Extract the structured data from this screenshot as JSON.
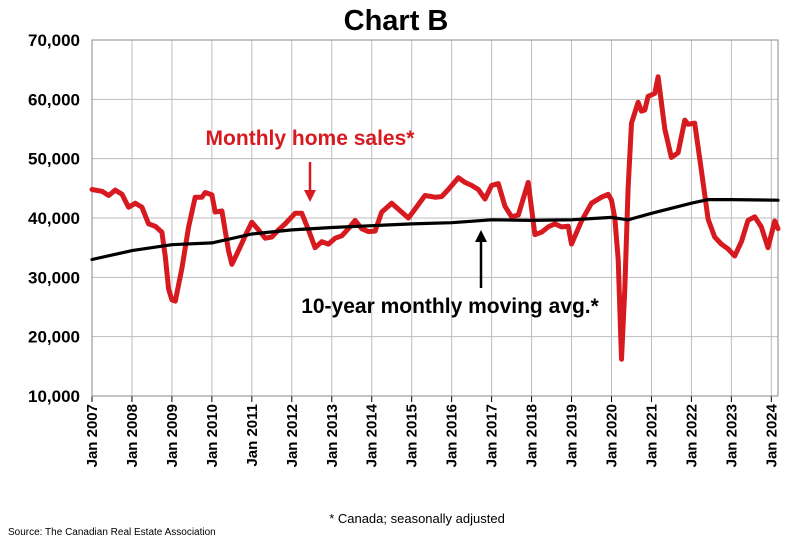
{
  "chart_data": {
    "type": "line",
    "title": "Chart B",
    "xlabel": "",
    "ylabel": "",
    "ylim": [
      10000,
      70000
    ],
    "xlim": [
      "Jan 2007",
      "Mar 2024"
    ],
    "grid": true,
    "yticks": [
      "10,000",
      "20,000",
      "30,000",
      "40,000",
      "50,000",
      "60,000",
      "70,000"
    ],
    "xticks": [
      "Jan 2007",
      "Jan 2008",
      "Jan 2009",
      "Jan 2010",
      "Jan 2011",
      "Jan 2012",
      "Jan 2013",
      "Jan 2014",
      "Jan 2015",
      "Jan 2016",
      "Jan 2017",
      "Jan 2018",
      "Jan 2019",
      "Jan 2020",
      "Jan 2021",
      "Jan 2022",
      "Jan 2023",
      "Jan 2024"
    ],
    "series": [
      {
        "name": "Monthly home sales*",
        "color": "#d71920",
        "points": [
          [
            "2007-01",
            44800
          ],
          [
            "2007-04",
            44500
          ],
          [
            "2007-06",
            43800
          ],
          [
            "2007-08",
            44700
          ],
          [
            "2007-10",
            44000
          ],
          [
            "2007-12",
            41800
          ],
          [
            "2008-02",
            42500
          ],
          [
            "2008-04",
            41800
          ],
          [
            "2008-06",
            39000
          ],
          [
            "2008-08",
            38600
          ],
          [
            "2008-10",
            37600
          ],
          [
            "2008-11",
            33500
          ],
          [
            "2008-12",
            28000
          ],
          [
            "2009-01",
            26200
          ],
          [
            "2009-02",
            26000
          ],
          [
            "2009-04",
            31500
          ],
          [
            "2009-06",
            38500
          ],
          [
            "2009-08",
            43500
          ],
          [
            "2009-10",
            43500
          ],
          [
            "2009-11",
            44300
          ],
          [
            "2010-01",
            43900
          ],
          [
            "2010-02",
            41000
          ],
          [
            "2010-04",
            41200
          ],
          [
            "2010-06",
            34500
          ],
          [
            "2010-07",
            32200
          ],
          [
            "2010-09",
            34500
          ],
          [
            "2010-11",
            37000
          ],
          [
            "2011-01",
            39300
          ],
          [
            "2011-03",
            38000
          ],
          [
            "2011-05",
            36600
          ],
          [
            "2011-07",
            36800
          ],
          [
            "2011-09",
            38000
          ],
          [
            "2011-11",
            39000
          ],
          [
            "2012-02",
            40800
          ],
          [
            "2012-04",
            40800
          ],
          [
            "2012-06",
            38000
          ],
          [
            "2012-08",
            35000
          ],
          [
            "2012-10",
            36000
          ],
          [
            "2012-12",
            35600
          ],
          [
            "2013-02",
            36600
          ],
          [
            "2013-04",
            37000
          ],
          [
            "2013-06",
            38200
          ],
          [
            "2013-08",
            39600
          ],
          [
            "2013-10",
            38200
          ],
          [
            "2013-12",
            37700
          ],
          [
            "2014-02",
            37800
          ],
          [
            "2014-04",
            41000
          ],
          [
            "2014-07",
            42500
          ],
          [
            "2014-10",
            41000
          ],
          [
            "2014-12",
            40000
          ],
          [
            "2015-02",
            41500
          ],
          [
            "2015-05",
            43800
          ],
          [
            "2015-08",
            43500
          ],
          [
            "2015-10",
            43600
          ],
          [
            "2015-12",
            44800
          ],
          [
            "2016-03",
            46800
          ],
          [
            "2016-05",
            46000
          ],
          [
            "2016-07",
            45500
          ],
          [
            "2016-09",
            44800
          ],
          [
            "2016-11",
            43200
          ],
          [
            "2017-01",
            45500
          ],
          [
            "2017-03",
            45800
          ],
          [
            "2017-05",
            42000
          ],
          [
            "2017-07",
            40200
          ],
          [
            "2017-09",
            40500
          ],
          [
            "2017-12",
            46000
          ],
          [
            "2018-02",
            37200
          ],
          [
            "2018-04",
            37600
          ],
          [
            "2018-06",
            38500
          ],
          [
            "2018-08",
            39000
          ],
          [
            "2018-10",
            38500
          ],
          [
            "2018-12",
            38600
          ],
          [
            "2019-01",
            35600
          ],
          [
            "2019-04",
            39500
          ],
          [
            "2019-07",
            42500
          ],
          [
            "2019-10",
            43500
          ],
          [
            "2019-12",
            44000
          ],
          [
            "2020-01",
            43000
          ],
          [
            "2020-02",
            40000
          ],
          [
            "2020-03",
            33000
          ],
          [
            "2020-04",
            16200
          ],
          [
            "2020-05",
            28000
          ],
          [
            "2020-06",
            45000
          ],
          [
            "2020-07",
            56000
          ],
          [
            "2020-09",
            59500
          ],
          [
            "2020-10",
            58000
          ],
          [
            "2020-11",
            58200
          ],
          [
            "2020-12",
            60500
          ],
          [
            "2021-02",
            61000
          ],
          [
            "2021-03",
            63800
          ],
          [
            "2021-05",
            55000
          ],
          [
            "2021-07",
            50200
          ],
          [
            "2021-09",
            51000
          ],
          [
            "2021-11",
            56500
          ],
          [
            "2021-12",
            55800
          ],
          [
            "2022-02",
            56000
          ],
          [
            "2022-04",
            48000
          ],
          [
            "2022-06",
            39800
          ],
          [
            "2022-08",
            36800
          ],
          [
            "2022-10",
            35600
          ],
          [
            "2022-12",
            34800
          ],
          [
            "2023-02",
            33600
          ],
          [
            "2023-04",
            36000
          ],
          [
            "2023-06",
            39600
          ],
          [
            "2023-08",
            40200
          ],
          [
            "2023-10",
            38500
          ],
          [
            "2023-12",
            35000
          ],
          [
            "2024-02",
            39500
          ],
          [
            "2024-03",
            38200
          ]
        ]
      },
      {
        "name": "10-year monthly moving avg.*",
        "color": "#000000",
        "points": [
          [
            "2007-01",
            33000
          ],
          [
            "2008-01",
            34500
          ],
          [
            "2009-01",
            35500
          ],
          [
            "2010-01",
            35800
          ],
          [
            "2011-01",
            37300
          ],
          [
            "2012-01",
            38000
          ],
          [
            "2013-01",
            38400
          ],
          [
            "2014-01",
            38700
          ],
          [
            "2015-01",
            39000
          ],
          [
            "2016-01",
            39200
          ],
          [
            "2017-01",
            39700
          ],
          [
            "2018-01",
            39600
          ],
          [
            "2019-01",
            39700
          ],
          [
            "2020-01",
            40100
          ],
          [
            "2020-06",
            39700
          ],
          [
            "2021-01",
            40800
          ],
          [
            "2022-01",
            42500
          ],
          [
            "2022-06",
            43100
          ],
          [
            "2023-01",
            43100
          ],
          [
            "2024-03",
            43000
          ]
        ]
      }
    ],
    "annotations": {
      "sales_label": "Monthly home sales*",
      "avg_label": "10-year monthly moving avg.*",
      "footnote": "* Canada; seasonally adjusted",
      "source": "Source: The Canadian Real Estate Association"
    }
  }
}
